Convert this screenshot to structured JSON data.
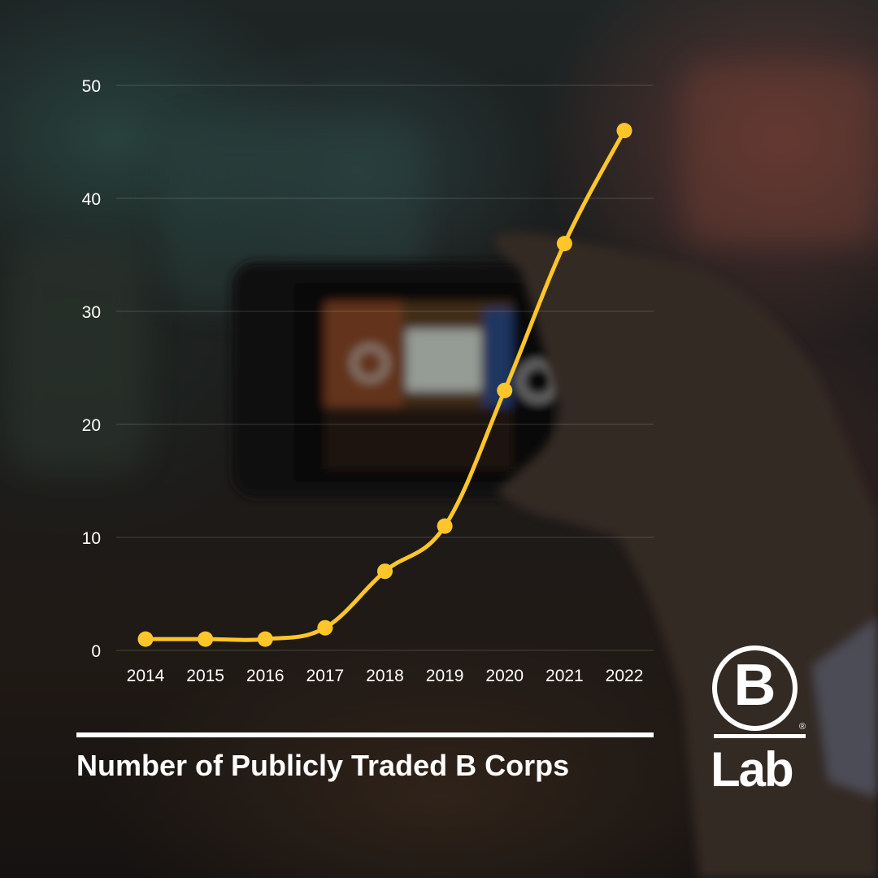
{
  "chart_data": {
    "type": "line",
    "title": "Number of Publicly Traded B Corps",
    "xlabel": "",
    "ylabel": "",
    "x": [
      "2014",
      "2015",
      "2016",
      "2017",
      "2018",
      "2019",
      "2020",
      "2021",
      "2022"
    ],
    "series": [
      {
        "values": [
          1,
          1,
          1,
          2,
          7,
          11,
          23,
          36,
          46
        ]
      }
    ],
    "ylim": [
      0,
      50
    ],
    "yticks": [
      "0",
      "10",
      "20",
      "30",
      "40",
      "50"
    ],
    "grid": true,
    "legend": "none",
    "colors": {
      "line": "#FFC629",
      "text": "#FFFFFF",
      "grid": "#FFFFFF"
    }
  },
  "logo": {
    "letter": "B",
    "word": "Lab",
    "registered": "®"
  }
}
